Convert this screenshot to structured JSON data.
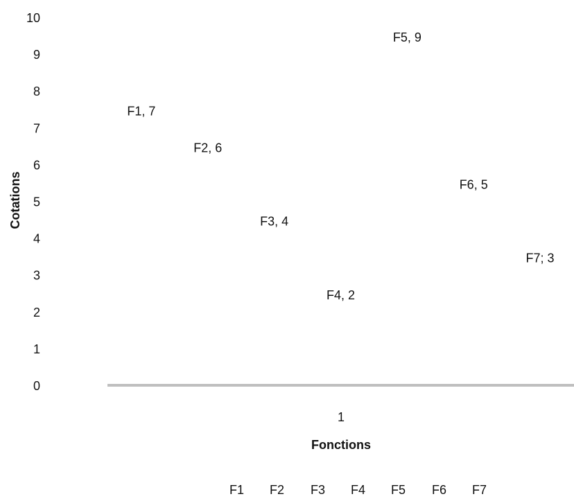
{
  "chart_data": {
    "type": "bar",
    "title": "",
    "xlabel": "Fonctions",
    "ylabel": "Cotations",
    "x_tick_labels": [
      "1"
    ],
    "y_ticks": [
      0,
      1,
      2,
      3,
      4,
      5,
      6,
      7,
      8,
      9,
      10
    ],
    "ylim": [
      0,
      10
    ],
    "grid": false,
    "legend_position": "bottom",
    "categories": [
      "1"
    ],
    "series": [
      {
        "name": "F1",
        "values": [
          7
        ],
        "label": "F1, 7"
      },
      {
        "name": "F2",
        "values": [
          6
        ],
        "label": "F2, 6"
      },
      {
        "name": "F3",
        "values": [
          4
        ],
        "label": "F3, 4"
      },
      {
        "name": "F4",
        "values": [
          2
        ],
        "label": "F4, 2"
      },
      {
        "name": "F5",
        "values": [
          9
        ],
        "label": "F5, 9"
      },
      {
        "name": "F6",
        "values": [
          5
        ],
        "label": "F6, 5"
      },
      {
        "name": "F7",
        "values": [
          3
        ],
        "label": "F7; 3"
      }
    ]
  }
}
